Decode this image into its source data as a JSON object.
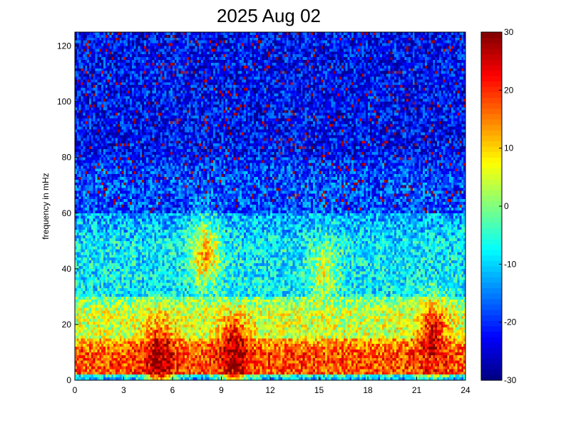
{
  "chart_data": {
    "type": "heatmap",
    "title": "2025 Aug 02",
    "xlabel": "",
    "ylabel": "frequency in mHz",
    "xlim": [
      0,
      24
    ],
    "ylim": [
      0,
      125
    ],
    "x_ticks": [
      "0",
      "3",
      "6",
      "9",
      "12",
      "15",
      "18",
      "21",
      "24"
    ],
    "y_ticks": [
      "0",
      "20",
      "40",
      "60",
      "80",
      "100",
      "120"
    ],
    "colorbar": {
      "colormap": "jet",
      "range": [
        -30,
        30
      ],
      "ticks": [
        "-30",
        "-20",
        "-10",
        "0",
        "10",
        "20",
        "30"
      ]
    },
    "resolution": {
      "x_bins": 192,
      "y_bins": 125
    },
    "band_profile": {
      "description_levels_dB": "approximate power level by frequency band",
      "levels": [
        {
          "freq_mHz": [
            0,
            2
          ],
          "level_dB": -12
        },
        {
          "freq_mHz": [
            2,
            15
          ],
          "level_dB": 18
        },
        {
          "freq_mHz": [
            15,
            30
          ],
          "level_dB": 5
        },
        {
          "freq_mHz": [
            30,
            60
          ],
          "level_dB": -8
        },
        {
          "freq_mHz": [
            60,
            80
          ],
          "level_dB": -18
        },
        {
          "freq_mHz": [
            80,
            125
          ],
          "level_dB": -22
        }
      ]
    },
    "hotspots": [
      {
        "time_h": 5.2,
        "freq_mHz": 8,
        "level_dB": 28
      },
      {
        "time_h": 9.8,
        "freq_mHz": 10,
        "level_dB": 28
      },
      {
        "time_h": 8.0,
        "freq_mHz": 45,
        "level_dB": 12
      },
      {
        "time_h": 15.3,
        "freq_mHz": 38,
        "level_dB": 5
      },
      {
        "time_h": 22.0,
        "freq_mHz": 15,
        "level_dB": 25
      }
    ]
  }
}
